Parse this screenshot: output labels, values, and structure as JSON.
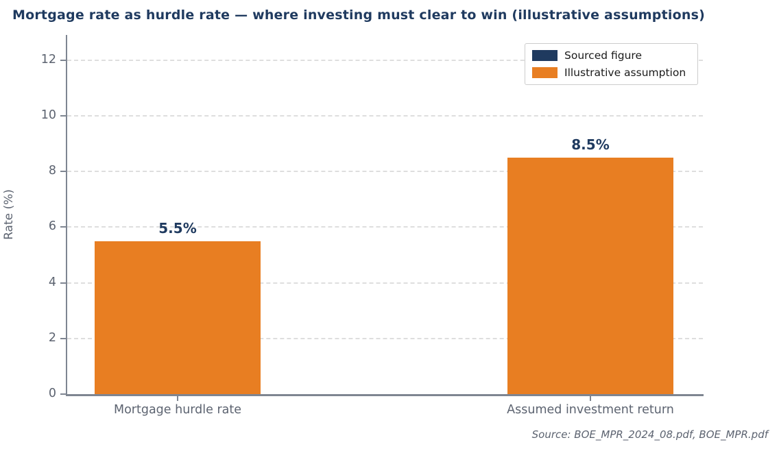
{
  "title": "Mortgage rate as hurdle rate — where investing must clear to win (illustrative assumptions)",
  "source_note": "Source: BOE_MPR_2024_08.pdf, BOE_MPR.pdf",
  "colors": {
    "navy": "#1f3a5f",
    "orange": "#e87e22",
    "axis": "#7e8591",
    "tick_label": "#5c6370",
    "grid": "#dedede"
  },
  "chart_data": {
    "type": "bar",
    "categories": [
      "Mortgage hurdle rate",
      "Assumed investment return"
    ],
    "values": [
      5.5,
      8.5
    ],
    "value_labels": [
      "5.5%",
      "8.5%"
    ],
    "bar_colors": [
      "#e87e22",
      "#e87e22"
    ],
    "title": "Mortgage rate as hurdle rate — where investing must clear to win (illustrative assumptions)",
    "xlabel": "",
    "ylabel": "Rate (%)",
    "yticks": [
      0,
      2,
      4,
      6,
      8,
      10,
      12
    ],
    "ylim": [
      0,
      12.9
    ],
    "grid": "horizontal-dashed",
    "legend_position": "upper-right",
    "legend": [
      {
        "label": "Sourced figure",
        "color": "#1f3a5f"
      },
      {
        "label": "Illustrative assumption",
        "color": "#e87e22"
      }
    ]
  }
}
